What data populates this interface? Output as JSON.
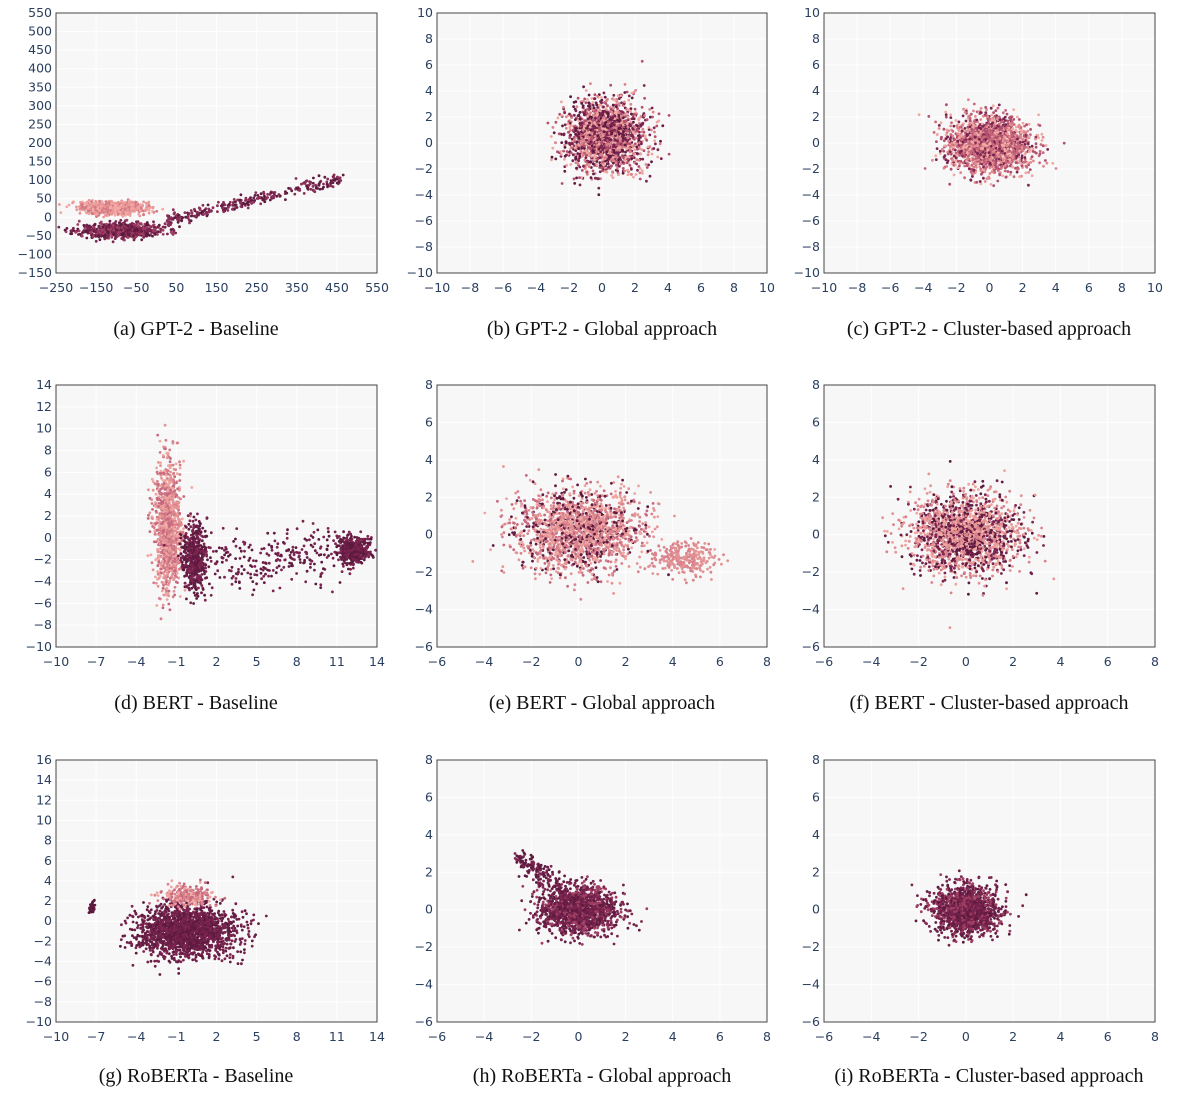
{
  "chart_data": [
    {
      "type": "scatter",
      "caption": "(a) GPT-2 - Baseline",
      "xticks": [
        "−250",
        "−150",
        "−50",
        "50",
        "150",
        "250",
        "350",
        "450",
        "550"
      ],
      "yticks": [
        "−150",
        "−100",
        "−50",
        "0",
        "50",
        "100",
        "150",
        "200",
        "250",
        "300",
        "350",
        "400",
        "450",
        "500",
        "550"
      ],
      "xlim": [
        -250,
        600
      ],
      "ylim": [
        -150,
        550
      ],
      "clusters": [
        {
          "shape": "blob",
          "cx": -100,
          "cy": 25,
          "rx": 90,
          "ry": 18,
          "n": 900,
          "colors": [
            "#f4a7a5",
            "#e89894",
            "#d37a85"
          ]
        },
        {
          "shape": "blob",
          "cx": -80,
          "cy": -35,
          "rx": 120,
          "ry": 22,
          "n": 700,
          "colors": [
            "#5e1a3f",
            "#7b2450",
            "#9e3e62"
          ]
        },
        {
          "shape": "line",
          "x0": 40,
          "y0": -10,
          "x1": 510,
          "y1": 105,
          "spread": 8,
          "n": 300,
          "colors": [
            "#5e1a3f",
            "#8a3058"
          ]
        }
      ]
    },
    {
      "type": "scatter",
      "caption": "(b) GPT-2 - Global approach",
      "xticks": [
        "−10",
        "−8",
        "−6",
        "−4",
        "−2",
        "0",
        "2",
        "4",
        "6",
        "8",
        "10"
      ],
      "yticks": [
        "−10",
        "−8",
        "−6",
        "−4",
        "−2",
        "0",
        "2",
        "4",
        "6",
        "8",
        "10"
      ],
      "xlim": [
        -10,
        10
      ],
      "ylim": [
        -10,
        10
      ],
      "clusters": [
        {
          "shape": "blob",
          "cx": 0.2,
          "cy": 0.5,
          "rx": 2.6,
          "ry": 3.0,
          "n": 1900,
          "colors": [
            "#5e1a3f",
            "#7b2450",
            "#b3506e",
            "#d9838c",
            "#f0a5a0"
          ]
        }
      ]
    },
    {
      "type": "scatter",
      "caption": "(c) GPT-2 - Cluster-based approach",
      "xticks": [
        "−10",
        "−8",
        "−6",
        "−4",
        "−2",
        "0",
        "2",
        "4",
        "6",
        "8",
        "10"
      ],
      "yticks": [
        "−10",
        "−8",
        "−6",
        "−4",
        "−2",
        "0",
        "2",
        "4",
        "6",
        "8",
        "10"
      ],
      "xlim": [
        -10,
        10
      ],
      "ylim": [
        -10,
        10
      ],
      "clusters": [
        {
          "shape": "blob",
          "cx": 0.0,
          "cy": -0.1,
          "rx": 2.8,
          "ry": 2.4,
          "n": 1900,
          "colors": [
            "#e08a8e",
            "#c8687c",
            "#f2aaa4",
            "#7b2450",
            "#b0506e"
          ]
        }
      ]
    },
    {
      "type": "scatter",
      "caption": "(d) BERT - Baseline",
      "xticks": [
        "−10",
        "−7",
        "−4",
        "−1",
        "2",
        "5",
        "8",
        "11",
        "14"
      ],
      "yticks": [
        "−10",
        "−8",
        "−6",
        "−4",
        "−2",
        "0",
        "2",
        "4",
        "6",
        "8",
        "10",
        "12",
        "14"
      ],
      "xlim": [
        -10,
        15
      ],
      "ylim": [
        -10,
        15
      ],
      "clusters": [
        {
          "shape": "blob",
          "cx": -1.3,
          "cy": 1.5,
          "rx": 1.1,
          "ry": 6.5,
          "n": 1100,
          "colors": [
            "#f0a5a0",
            "#e49495",
            "#d47d88",
            "#c6697f"
          ]
        },
        {
          "shape": "blob",
          "cx": 0.8,
          "cy": -1.5,
          "rx": 1.1,
          "ry": 3.5,
          "n": 500,
          "colors": [
            "#5e1a3f",
            "#7b2450"
          ]
        },
        {
          "shape": "blob",
          "cx": 13.2,
          "cy": -0.8,
          "rx": 1.2,
          "ry": 1.4,
          "n": 500,
          "colors": [
            "#5e1a3f",
            "#7b2450"
          ]
        },
        {
          "shape": "line",
          "x0": 2.5,
          "y0": -2.0,
          "x1": 12.5,
          "y1": -1.0,
          "spread": 1.3,
          "n": 250,
          "colors": [
            "#5e1a3f",
            "#7b2450"
          ]
        }
      ]
    },
    {
      "type": "scatter",
      "caption": "(e) BERT - Global approach",
      "xticks": [
        "−6",
        "−4",
        "−2",
        "0",
        "2",
        "4",
        "6",
        "8"
      ],
      "yticks": [
        "−6",
        "−4",
        "−2",
        "0",
        "2",
        "4",
        "6",
        "8"
      ],
      "xlim": [
        -6,
        8
      ],
      "ylim": [
        -6,
        8
      ],
      "clusters": [
        {
          "shape": "blob",
          "cx": 0.0,
          "cy": 0.2,
          "rx": 3.0,
          "ry": 2.4,
          "n": 1800,
          "colors": [
            "#d9838c",
            "#e49495",
            "#c6697f",
            "#f0a5a0",
            "#5e1a3f"
          ]
        },
        {
          "shape": "blob",
          "cx": 4.5,
          "cy": -1.3,
          "rx": 1.4,
          "ry": 1.0,
          "n": 250,
          "colors": [
            "#e49495",
            "#d9838c"
          ]
        }
      ]
    },
    {
      "type": "scatter",
      "caption": "(f) BERT - Cluster-based approach",
      "xticks": [
        "−6",
        "−4",
        "−2",
        "0",
        "2",
        "4",
        "6",
        "8"
      ],
      "yticks": [
        "−6",
        "−4",
        "−2",
        "0",
        "2",
        "4",
        "6",
        "8"
      ],
      "xlim": [
        -6,
        8
      ],
      "ylim": [
        -6,
        8
      ],
      "clusters": [
        {
          "shape": "blob",
          "cx": 0.0,
          "cy": 0.0,
          "rx": 2.6,
          "ry": 2.3,
          "n": 1900,
          "colors": [
            "#5e1a3f",
            "#d9838c",
            "#e49495",
            "#7b2450",
            "#f0a5a0"
          ]
        }
      ]
    },
    {
      "type": "scatter",
      "caption": "(g) RoBERTa - Baseline",
      "xticks": [
        "−10",
        "−7",
        "−4",
        "−1",
        "2",
        "5",
        "8",
        "11",
        "14"
      ],
      "yticks": [
        "−10",
        "−8",
        "−6",
        "−4",
        "−2",
        "0",
        "2",
        "4",
        "6",
        "8",
        "10",
        "12",
        "14",
        "16"
      ],
      "xlim": [
        -10,
        17
      ],
      "ylim": [
        -10,
        16
      ],
      "clusters": [
        {
          "shape": "blob",
          "cx": 1.0,
          "cy": -1.0,
          "rx": 4.5,
          "ry": 2.8,
          "n": 1800,
          "colors": [
            "#5e1a3f",
            "#6e2048",
            "#7b2450"
          ]
        },
        {
          "shape": "blob",
          "cx": 1.0,
          "cy": 2.5,
          "rx": 2.5,
          "ry": 1.2,
          "n": 250,
          "colors": [
            "#f0a5a0",
            "#d9838c",
            "#c6697f"
          ]
        },
        {
          "shape": "blob",
          "cx": -7.0,
          "cy": 1.3,
          "rx": 0.25,
          "ry": 0.6,
          "n": 60,
          "colors": [
            "#5e1a3f"
          ]
        }
      ]
    },
    {
      "type": "scatter",
      "caption": "(h) RoBERTa - Global approach",
      "xticks": [
        "−6",
        "−4",
        "−2",
        "0",
        "2",
        "4",
        "6",
        "8"
      ],
      "yticks": [
        "−6",
        "−4",
        "−2",
        "0",
        "2",
        "4",
        "6",
        "8"
      ],
      "xlim": [
        -6,
        8
      ],
      "ylim": [
        -6,
        8
      ],
      "clusters": [
        {
          "shape": "blob",
          "cx": 0.0,
          "cy": 0.0,
          "rx": 1.8,
          "ry": 1.4,
          "n": 1600,
          "colors": [
            "#5e1a3f",
            "#6e2048",
            "#7b2450",
            "#9e3e62"
          ]
        },
        {
          "shape": "line",
          "x0": -2.6,
          "y0": 2.8,
          "x1": -0.8,
          "y1": 1.2,
          "spread": 0.3,
          "n": 150,
          "colors": [
            "#5e1a3f",
            "#7b2450"
          ]
        }
      ]
    },
    {
      "type": "scatter",
      "caption": "(i) RoBERTa - Cluster-based approach",
      "xticks": [
        "−6",
        "−4",
        "−2",
        "0",
        "2",
        "4",
        "6",
        "8"
      ],
      "yticks": [
        "−6",
        "−4",
        "−2",
        "0",
        "2",
        "4",
        "6",
        "8"
      ],
      "xlim": [
        -6,
        8
      ],
      "ylim": [
        -6,
        8
      ],
      "clusters": [
        {
          "shape": "blob",
          "cx": 0.0,
          "cy": 0.0,
          "rx": 1.5,
          "ry": 1.4,
          "n": 1500,
          "colors": [
            "#5e1a3f",
            "#6e2048",
            "#7b2450",
            "#9e3e62"
          ]
        }
      ]
    }
  ]
}
